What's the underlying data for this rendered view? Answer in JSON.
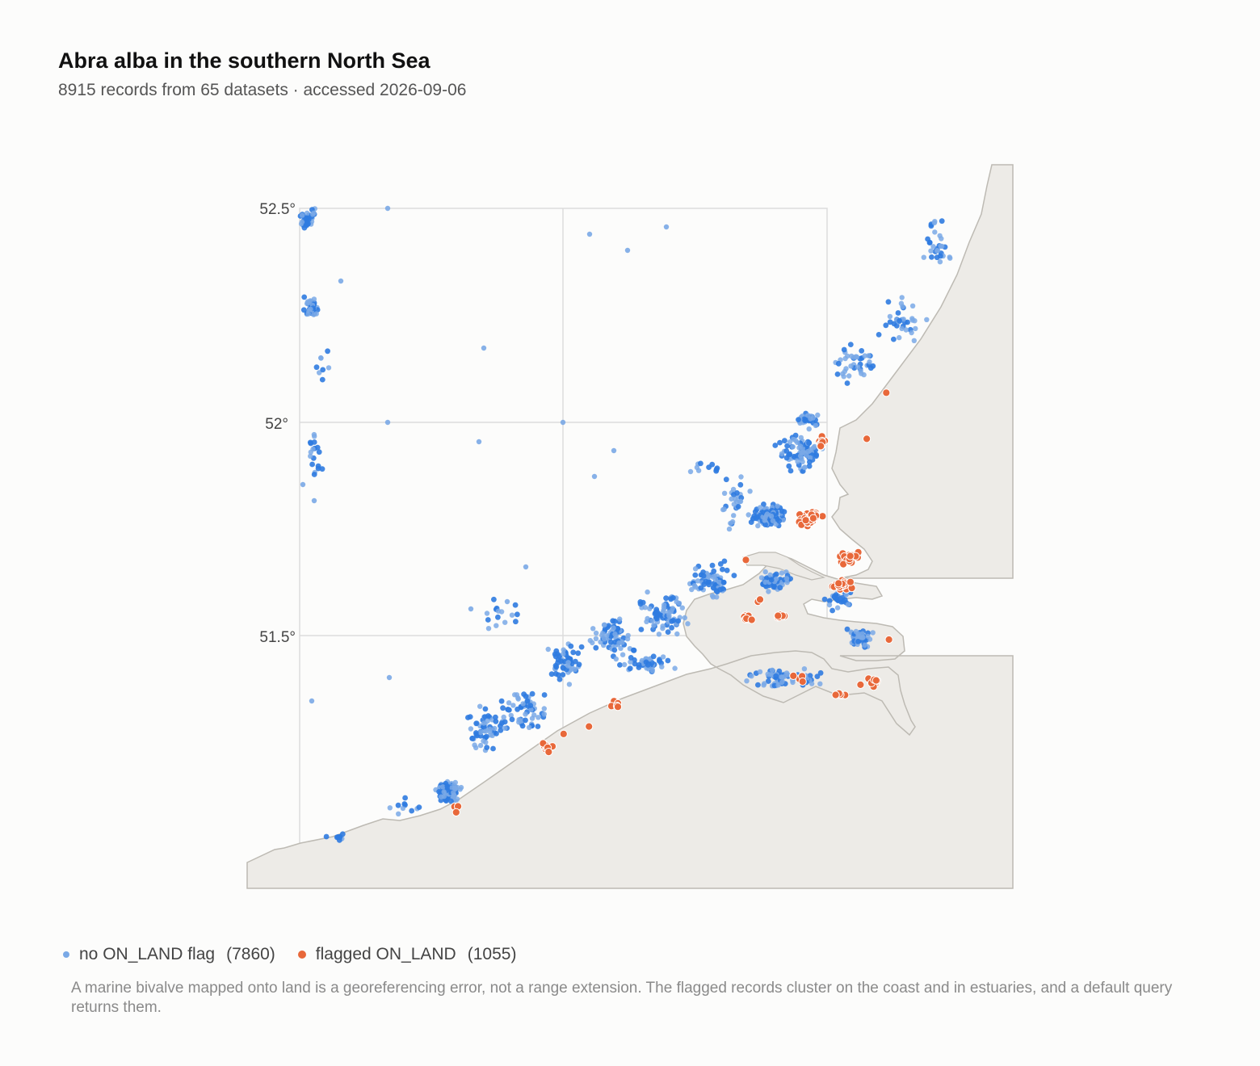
{
  "header": {
    "title": "Abra alba in the southern North Sea",
    "subtitle": "8915 records from 65 datasets · accessed 2026-09-06"
  },
  "map": {
    "lat_labels": [
      "52.5°",
      "52°",
      "51.5°"
    ],
    "lat_values": [
      52.5,
      52.0,
      51.5
    ],
    "lat_range": [
      51.0,
      52.6
    ],
    "colors": {
      "land": "#edebe7",
      "coast": "#bdbab3",
      "grid": "#dcdcdc",
      "unflagged": "#2f7be0",
      "flagged": "#e8683a"
    }
  },
  "legend": {
    "items": [
      {
        "label": "no ON_LAND flag",
        "count": "(7860)"
      },
      {
        "label": "flagged ON_LAND",
        "count": "(1055)"
      }
    ]
  },
  "note": {
    "text": "A marine bivalve mapped onto land is a georeferencing error, not a range extension. The flagged records cluster on the coast and in estuaries, and a default query returns them."
  }
}
